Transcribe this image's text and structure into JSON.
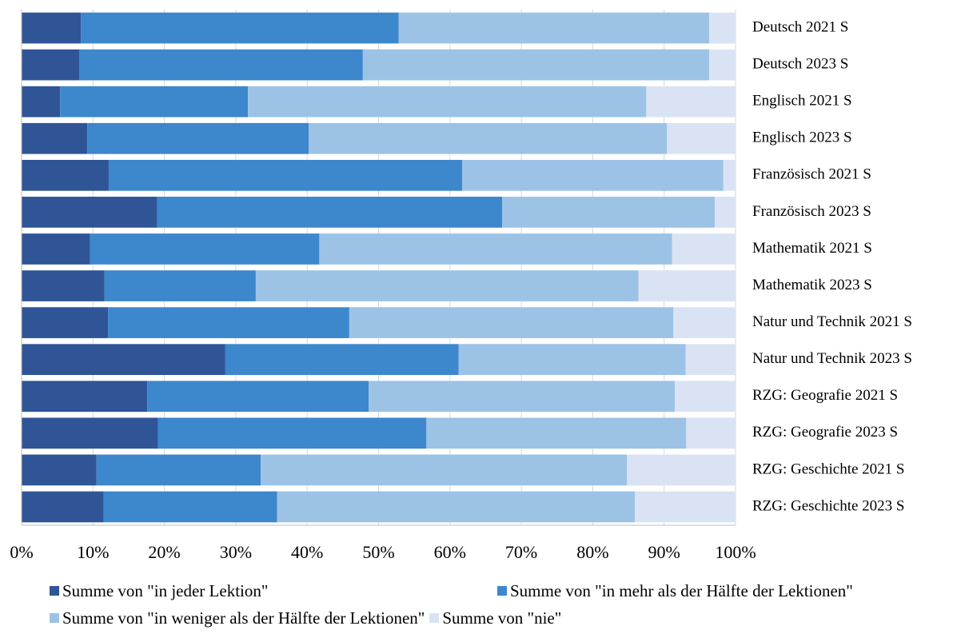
{
  "chart_data": {
    "type": "bar",
    "orientation": "horizontal",
    "stacked": "100%",
    "categories": [
      "Deutsch 2021 S",
      "Deutsch 2023 S",
      "Englisch 2021 S",
      "Englisch 2023 S",
      "Französisch 2021 S",
      "Französisch 2023 S",
      "Mathematik 2021 S",
      "Mathematik 2023 S",
      "Natur und Technik 2021 S",
      "Natur und Technik 2023 S",
      "RZG: Geografie 2021 S",
      "RZG: Geografie 2023 S",
      "RZG: Geschichte 2021 S",
      "RZG: Geschichte 2023 S"
    ],
    "series": [
      {
        "name": "Summe von \"in jeder Lektion\"",
        "color": "#2f5597",
        "values": [
          8.3,
          8.1,
          5.4,
          9.2,
          12.2,
          19.0,
          9.6,
          11.6,
          12.1,
          28.5,
          17.6,
          19.1,
          10.5,
          11.5
        ]
      },
      {
        "name": "Summe von \"in mehr als der Hälfte der Lektionen\"",
        "color": "#3d87cd",
        "values": [
          44.5,
          39.7,
          26.3,
          31.0,
          49.5,
          48.3,
          32.1,
          21.2,
          33.8,
          32.7,
          31.0,
          37.6,
          23.0,
          24.3
        ]
      },
      {
        "name": "Summe von \"in weniger als der Hälfte der Lektionen\"",
        "color": "#9cc3e6",
        "values": [
          43.5,
          48.5,
          55.8,
          50.2,
          36.6,
          29.8,
          49.4,
          53.6,
          45.4,
          31.8,
          42.9,
          36.4,
          51.3,
          50.1
        ]
      },
      {
        "name": "Summe von \"nie\"",
        "color": "#dae3f3",
        "values": [
          3.7,
          3.7,
          12.5,
          9.6,
          1.7,
          2.9,
          8.9,
          13.6,
          8.7,
          7.0,
          8.5,
          6.9,
          15.2,
          14.1
        ]
      }
    ],
    "x_ticks": [
      "0%",
      "10%",
      "20%",
      "30%",
      "40%",
      "50%",
      "60%",
      "70%",
      "80%",
      "90%",
      "100%"
    ],
    "xlim": [
      0,
      100
    ],
    "grid": "vertical",
    "legend_position": "bottom",
    "title": "",
    "xlabel": "",
    "ylabel": ""
  }
}
